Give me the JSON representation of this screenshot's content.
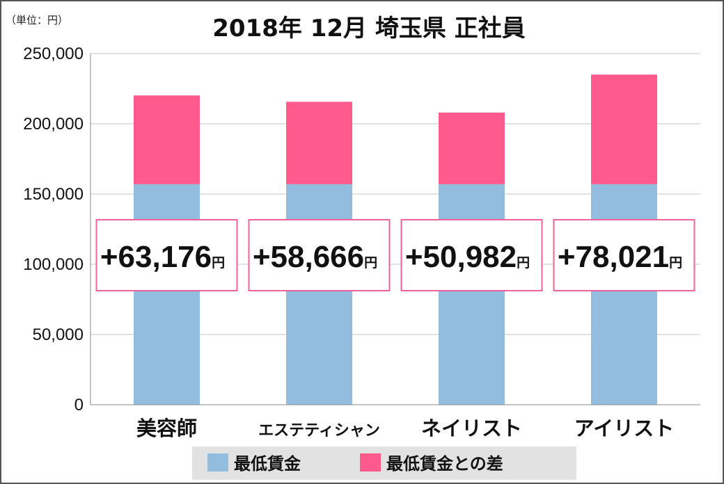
{
  "unit_label": "（単位：円）",
  "title": "2018年 12月 埼玉県 正社員",
  "chart_data": {
    "type": "bar",
    "stacked": true,
    "title": "2018年 12月 埼玉県 正社員",
    "unit": "（単位：円）",
    "categories": [
      "美容師",
      "エステティシャン",
      "ネイリスト",
      "アイリスト"
    ],
    "series": [
      {
        "name": "最低賃金",
        "color": "#92BDDF",
        "values": [
          157000,
          157000,
          157000,
          157000
        ]
      },
      {
        "name": "最低賃金との差",
        "color": "#FF5A8C",
        "values": [
          63176,
          58666,
          50982,
          78021
        ]
      }
    ],
    "annotations": [
      "+63,176",
      "+58,666",
      "+50,982",
      "+78,021"
    ],
    "annotation_unit": "円",
    "annotation_border": "#F0609A",
    "ylim": [
      0,
      250000
    ],
    "yticks": [
      0,
      50000,
      100000,
      150000,
      200000,
      250000
    ],
    "ytick_labels": [
      "0",
      "50,000",
      "100,000",
      "150,000",
      "200,000",
      "250,000"
    ],
    "grid": true,
    "legend_position": "bottom"
  }
}
